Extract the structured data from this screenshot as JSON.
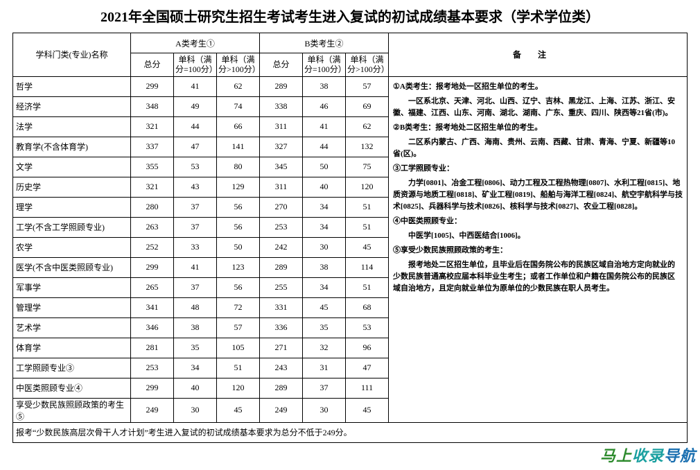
{
  "title": "2021年全国硕士研究生招生考试考生进入复试的初试成绩基本要求（学术学位类）",
  "headers": {
    "subject": "学科门类(专业)名称",
    "groupA": "A类考生①",
    "groupB": "B类考生②",
    "total": "总分",
    "single100": "单科（满分=100分）",
    "singleOver100": "单科（满分>100分）",
    "remarks": "备注"
  },
  "rows": [
    {
      "name": "哲学",
      "a": [
        299,
        41,
        62
      ],
      "b": [
        289,
        38,
        57
      ]
    },
    {
      "name": "经济学",
      "a": [
        348,
        49,
        74
      ],
      "b": [
        338,
        46,
        69
      ]
    },
    {
      "name": "法学",
      "a": [
        321,
        44,
        66
      ],
      "b": [
        311,
        41,
        62
      ]
    },
    {
      "name": "教育学(不含体育学)",
      "a": [
        337,
        47,
        141
      ],
      "b": [
        327,
        44,
        132
      ]
    },
    {
      "name": "文学",
      "a": [
        355,
        53,
        80
      ],
      "b": [
        345,
        50,
        75
      ]
    },
    {
      "name": "历史学",
      "a": [
        321,
        43,
        129
      ],
      "b": [
        311,
        40,
        120
      ]
    },
    {
      "name": "理学",
      "a": [
        280,
        37,
        56
      ],
      "b": [
        270,
        34,
        51
      ]
    },
    {
      "name": "工学(不含工学照顾专业)",
      "a": [
        263,
        37,
        56
      ],
      "b": [
        253,
        34,
        51
      ]
    },
    {
      "name": "农学",
      "a": [
        252,
        33,
        50
      ],
      "b": [
        242,
        30,
        45
      ]
    },
    {
      "name": "医学(不含中医类照顾专业)",
      "a": [
        299,
        41,
        123
      ],
      "b": [
        289,
        38,
        114
      ]
    },
    {
      "name": "军事学",
      "a": [
        265,
        37,
        56
      ],
      "b": [
        255,
        34,
        51
      ]
    },
    {
      "name": "管理学",
      "a": [
        341,
        48,
        72
      ],
      "b": [
        331,
        45,
        68
      ]
    },
    {
      "name": "艺术学",
      "a": [
        346,
        38,
        57
      ],
      "b": [
        336,
        35,
        53
      ]
    },
    {
      "name": "体育学",
      "a": [
        281,
        35,
        105
      ],
      "b": [
        271,
        32,
        96
      ]
    },
    {
      "name": "工学照顾专业③",
      "a": [
        253,
        34,
        51
      ],
      "b": [
        243,
        31,
        47
      ]
    },
    {
      "name": "中医类照顾专业④",
      "a": [
        299,
        40,
        120
      ],
      "b": [
        289,
        37,
        111
      ]
    },
    {
      "name": "享受少数民族照顾政策的考生⑤",
      "a": [
        249,
        30,
        45
      ],
      "b": [
        249,
        30,
        45
      ]
    }
  ],
  "footer": "报考“少数民族高层次骨干人才计划”考生进入复试的初试成绩基本要求为总分不低于249分。",
  "notes": {
    "n1h": "①A类考生：报考地处一区招生单位的考生。",
    "n1b": "一区系北京、天津、河北、山西、辽宁、吉林、黑龙江、上海、江苏、浙江、安徽、福建、江西、山东、河南、湖北、湖南、广东、重庆、四川、陕西等21省(市)。",
    "n2h": "②B类考生：报考地处二区招生单位的考生。",
    "n2b": "二区系内蒙古、广西、海南、贵州、云南、西藏、甘肃、青海、宁夏、新疆等10省(区)。",
    "n3h": "③工学照顾专业：",
    "n3b": "力学[0801]、冶金工程[0806]、动力工程及工程热物理[0807]、水利工程[0815]、地质资源与地质工程[0818]、矿业工程[0819]、船舶与海洋工程[0824]、航空宇航科学与技术[0825]、兵器科学与技术[0826]、核科学与技术[0827]、农业工程[0828]。",
    "n4h": "④中医类照顾专业：",
    "n4b": "中医学[1005]、中西医结合[1006]。",
    "n5h": "⑤享受少数民族照顾政策的考生：",
    "n5b": "报考地处二区招生单位，且毕业后在国务院公布的民族区域自治地方定向就业的少数民族普通高校应届本科毕业生考生；或者工作单位和户籍在国务院公布的民族区域自治地方，且定向就业单位为原单位的少数民族在职人员考生。"
  },
  "watermark": {
    "a": "马上",
    "b": "收录",
    "c": "导航"
  }
}
